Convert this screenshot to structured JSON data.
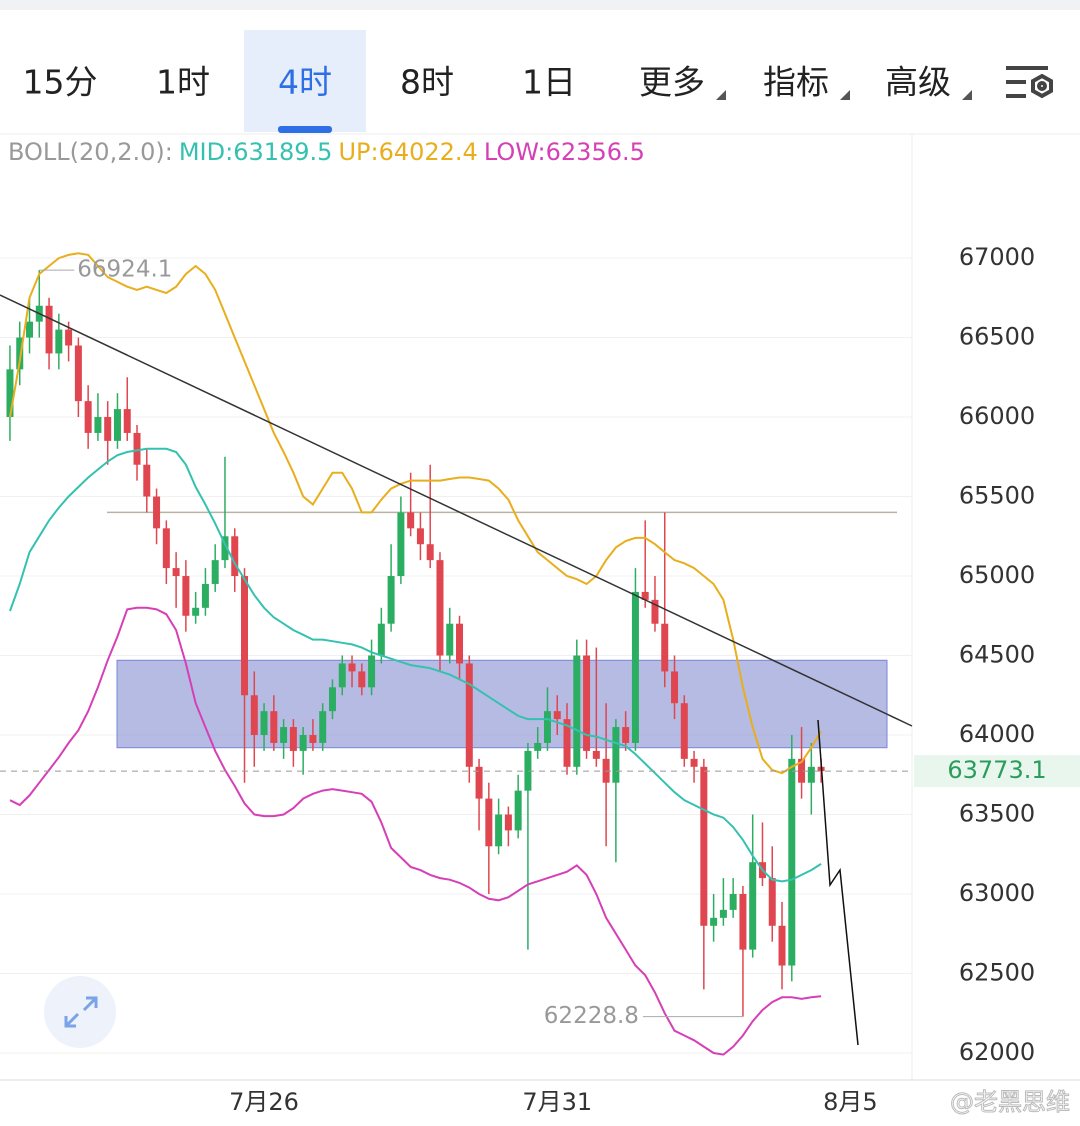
{
  "tabs": [
    "15分",
    "1时",
    "4时",
    "8时",
    "1日",
    "更多",
    "指标",
    "高级"
  ],
  "watermark": "@老黑思维",
  "chart_data": {
    "type": "candlestick",
    "indicator": "BOLL(20,2.0):",
    "up_color": "#2cae62",
    "down_color": "#e0464f",
    "ylim": [
      61830,
      67774
    ],
    "yticks": [
      62000,
      62500,
      63000,
      63500,
      64000,
      64500,
      65000,
      65500,
      66000,
      66500,
      67000
    ],
    "xlim": [
      -1.02,
      92.3
    ],
    "xticks": [
      {
        "value": 26,
        "label": "7月26"
      },
      {
        "value": 56,
        "label": "7月31"
      },
      {
        "value": 86,
        "label": "8月5"
      }
    ],
    "zone": [
      63920,
      64470
    ],
    "level": 65400,
    "ohlc": [
      [
        66000,
        66450,
        65850,
        66300
      ],
      [
        66300,
        66600,
        66200,
        66500
      ],
      [
        66500,
        66750,
        66400,
        66600
      ],
      [
        66600,
        66924.1,
        66500,
        66700
      ],
      [
        66700,
        66750,
        66300,
        66400
      ],
      [
        66400,
        66650,
        66300,
        66550
      ],
      [
        66550,
        66600,
        66350,
        66450
      ],
      [
        66450,
        66500,
        66000,
        66100
      ],
      [
        66100,
        66200,
        65800,
        65900
      ],
      [
        65900,
        66150,
        65850,
        66000
      ],
      [
        66000,
        66100,
        65700,
        65850
      ],
      [
        65850,
        66150,
        65800,
        66050
      ],
      [
        66050,
        66250,
        65850,
        65900
      ],
      [
        65900,
        65950,
        65600,
        65700
      ],
      [
        65700,
        65800,
        65400,
        65500
      ],
      [
        65500,
        65550,
        65200,
        65300
      ],
      [
        65300,
        65350,
        64950,
        65050
      ],
      [
        65050,
        65150,
        64800,
        65000
      ],
      [
        65000,
        65100,
        64650,
        64750
      ],
      [
        64750,
        64900,
        64700,
        64800
      ],
      [
        64800,
        65050,
        64750,
        64950
      ],
      [
        64950,
        65200,
        64900,
        65100
      ],
      [
        65100,
        65750,
        65050,
        65250
      ],
      [
        65250,
        65300,
        64900,
        65000
      ],
      [
        65000,
        65050,
        63700,
        64250
      ],
      [
        64250,
        64400,
        63800,
        64000
      ],
      [
        64000,
        64200,
        63900,
        64150
      ],
      [
        64150,
        64250,
        63900,
        63950
      ],
      [
        63950,
        64100,
        63850,
        64050
      ],
      [
        64050,
        64100,
        63800,
        63900
      ],
      [
        63900,
        64050,
        63750,
        64000
      ],
      [
        64000,
        64100,
        63900,
        63950
      ],
      [
        63950,
        64200,
        63900,
        64150
      ],
      [
        64150,
        64350,
        64100,
        64300
      ],
      [
        64300,
        64500,
        64250,
        64450
      ],
      [
        64450,
        64500,
        64300,
        64400
      ],
      [
        64400,
        64450,
        64250,
        64300
      ],
      [
        64300,
        64600,
        64250,
        64500
      ],
      [
        64500,
        64800,
        64450,
        64700
      ],
      [
        64700,
        65200,
        64650,
        65000
      ],
      [
        65000,
        65500,
        64950,
        65400
      ],
      [
        65400,
        65650,
        65250,
        65300
      ],
      [
        65300,
        65400,
        65100,
        65200
      ],
      [
        65200,
        65700,
        65050,
        65100
      ],
      [
        65100,
        65150,
        64400,
        64500
      ],
      [
        64500,
        64800,
        64450,
        64700
      ],
      [
        64700,
        64750,
        64350,
        64450
      ],
      [
        64450,
        64500,
        63700,
        63800
      ],
      [
        63800,
        63850,
        63400,
        63600
      ],
      [
        63600,
        63700,
        63000,
        63300
      ],
      [
        63300,
        63600,
        63250,
        63500
      ],
      [
        63500,
        63550,
        63300,
        63400
      ],
      [
        63400,
        63750,
        63350,
        63650
      ],
      [
        63650,
        63950,
        62650,
        63900
      ],
      [
        63900,
        64050,
        63850,
        63950
      ],
      [
        63950,
        64300,
        63900,
        64150
      ],
      [
        64150,
        64250,
        64000,
        64100
      ],
      [
        64100,
        64200,
        63750,
        63800
      ],
      [
        63800,
        64600,
        63750,
        64500
      ],
      [
        64500,
        64600,
        63850,
        63900
      ],
      [
        63900,
        64550,
        63800,
        63850
      ],
      [
        63850,
        64200,
        63300,
        63700
      ],
      [
        63700,
        64100,
        63200,
        64050
      ],
      [
        64050,
        64150,
        63900,
        63950
      ],
      [
        63950,
        65050,
        63900,
        64900
      ],
      [
        64900,
        65350,
        64800,
        64850
      ],
      [
        64850,
        65000,
        64650,
        64700
      ],
      [
        64700,
        65400,
        64300,
        64400
      ],
      [
        64400,
        64500,
        64100,
        64200
      ],
      [
        64200,
        64250,
        63800,
        63850
      ],
      [
        63850,
        63900,
        63700,
        63800
      ],
      [
        63800,
        63850,
        62400,
        62800
      ],
      [
        62800,
        63000,
        62700,
        62850
      ],
      [
        62850,
        63100,
        62800,
        62900
      ],
      [
        62900,
        63100,
        62850,
        63000
      ],
      [
        63000,
        63050,
        62228.8,
        62650
      ],
      [
        62650,
        63500,
        62600,
        63200
      ],
      [
        63200,
        63450,
        63050,
        63100
      ],
      [
        63100,
        63300,
        62700,
        62800
      ],
      [
        62800,
        62950,
        62400,
        62550
      ],
      [
        62550,
        64000,
        62450,
        63850
      ],
      [
        63850,
        64050,
        63600,
        63700
      ],
      [
        63700,
        63950,
        63500,
        63800
      ],
      [
        63800,
        63850,
        63700,
        63773.1
      ]
    ],
    "series": [
      {
        "name": "MID:",
        "color": "#35c1b0",
        "values": [
          64780,
          64950,
          65150,
          65250,
          65350,
          65430,
          65500,
          65560,
          65620,
          65670,
          65720,
          65760,
          65780,
          65790,
          65800,
          65800,
          65800,
          65780,
          65700,
          65560,
          65450,
          65330,
          65200,
          65080,
          64980,
          64880,
          64800,
          64740,
          64700,
          64660,
          64630,
          64600,
          64600,
          64590,
          64580,
          64570,
          64550,
          64520,
          64500,
          64480,
          64460,
          64440,
          64430,
          64420,
          64400,
          64380,
          64350,
          64320,
          64280,
          64240,
          64200,
          64160,
          64120,
          64100,
          64100,
          64100,
          64080,
          64060,
          64030,
          64000,
          63990,
          63970,
          63950,
          63930,
          63880,
          63820,
          63760,
          63700,
          63640,
          63590,
          63560,
          63530,
          63500,
          63480,
          63420,
          63340,
          63240,
          63150,
          63090,
          63080,
          63090,
          63120,
          63150,
          63189.5
        ]
      },
      {
        "name": "UP:",
        "color": "#e8ae1c",
        "values": [
          66000,
          66350,
          66750,
          66900,
          66950,
          67000,
          67020,
          67030,
          67020,
          66950,
          66880,
          66850,
          66820,
          66800,
          66820,
          66800,
          66780,
          66820,
          66900,
          66950,
          66900,
          66800,
          66650,
          66500,
          66350,
          66200,
          66050,
          65900,
          65780,
          65650,
          65500,
          65450,
          65550,
          65650,
          65650,
          65550,
          65400,
          65400,
          65480,
          65550,
          65580,
          65600,
          65600,
          65600,
          65600,
          65610,
          65620,
          65620,
          65610,
          65600,
          65550,
          65480,
          65350,
          65250,
          65150,
          65100,
          65050,
          65000,
          64980,
          64950,
          65000,
          65100,
          65180,
          65220,
          65240,
          65240,
          65200,
          65150,
          65100,
          65080,
          65050,
          65000,
          64950,
          64850,
          64600,
          64300,
          64050,
          63850,
          63780,
          63760,
          63800,
          63830,
          63920,
          64022.4
        ]
      },
      {
        "name": "LOW:",
        "color": "#d63fb6",
        "values": [
          63590,
          63560,
          63620,
          63700,
          63780,
          63860,
          63950,
          64030,
          64150,
          64300,
          64470,
          64620,
          64790,
          64800,
          64800,
          64790,
          64760,
          64660,
          64450,
          64200,
          64050,
          63900,
          63780,
          63680,
          63570,
          63500,
          63490,
          63490,
          63500,
          63540,
          63600,
          63630,
          63650,
          63660,
          63650,
          63640,
          63630,
          63580,
          63450,
          63290,
          63230,
          63170,
          63150,
          63120,
          63100,
          63090,
          63070,
          63040,
          63000,
          62970,
          62960,
          62980,
          63020,
          63060,
          63080,
          63100,
          63120,
          63140,
          63180,
          63120,
          63000,
          62850,
          62750,
          62650,
          62550,
          62490,
          62380,
          62250,
          62140,
          62110,
          62080,
          62040,
          62000,
          61990,
          62040,
          62110,
          62200,
          62270,
          62320,
          62350,
          62350,
          62340,
          62350,
          62356.5
        ]
      }
    ]
  }
}
